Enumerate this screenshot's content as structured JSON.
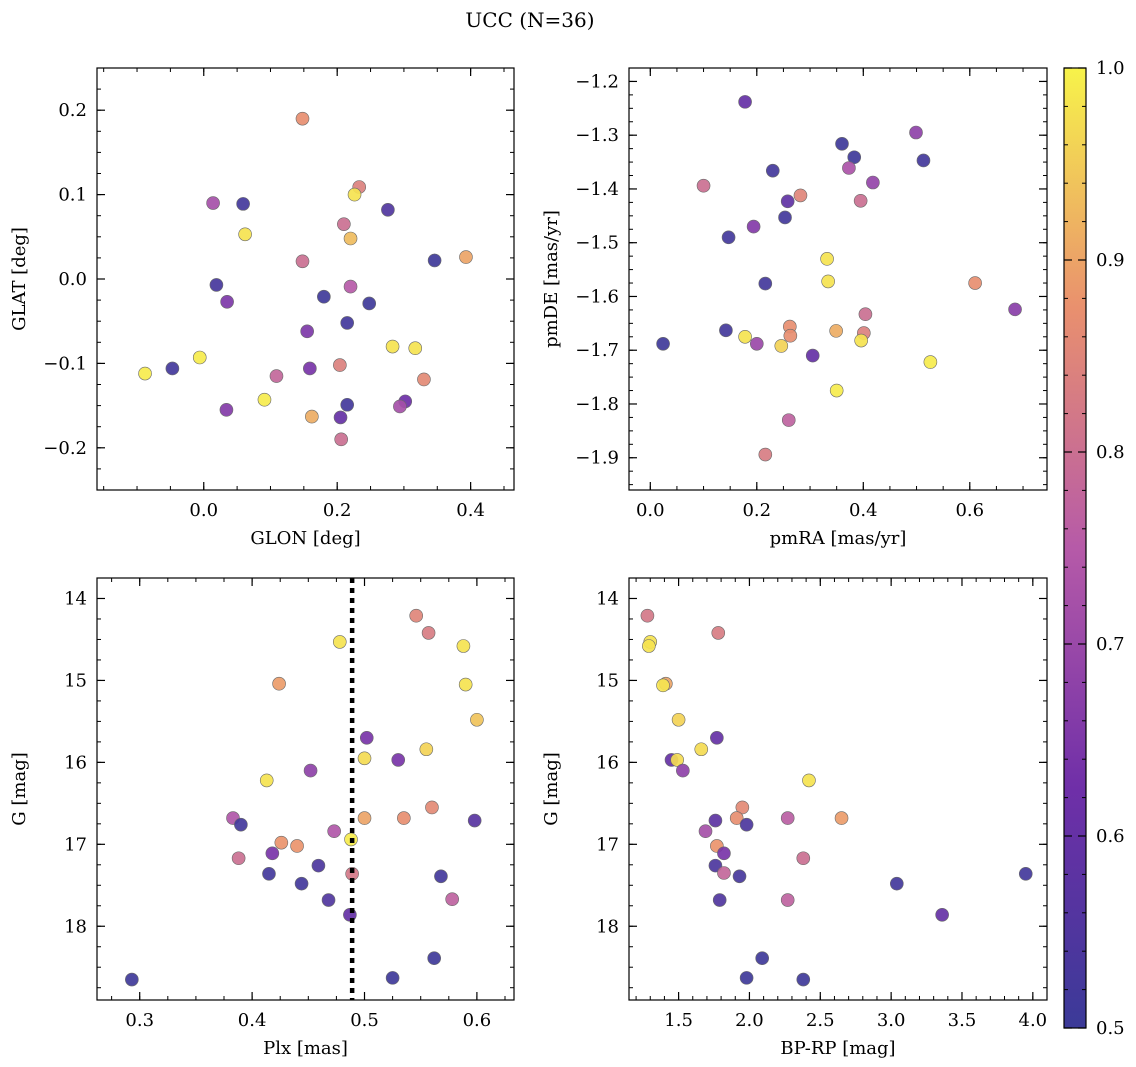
{
  "title": "UCC (N=36)",
  "colorbar": {
    "min": 0.5,
    "max": 1.0,
    "ticks": [
      0.5,
      0.6,
      0.7,
      0.8,
      0.9,
      1.0
    ],
    "tick_labels": [
      "0.5",
      "0.6",
      "0.7",
      "0.8",
      "0.9",
      "1.0"
    ],
    "colormap": "plasma"
  },
  "chart_data": [
    {
      "type": "scatter",
      "id": "glon-glat",
      "xlabel": "GLON [deg]",
      "ylabel": "GLAT [deg]",
      "xlim": [
        -0.16,
        0.465
      ],
      "ylim": [
        -0.25,
        0.25
      ],
      "xticks": [
        0.0,
        0.2,
        0.4
      ],
      "xtick_labels": [
        "0.0",
        "0.2",
        "0.4"
      ],
      "yticks": [
        -0.2,
        -0.1,
        0.0,
        0.1,
        0.2
      ],
      "ytick_labels": [
        "−0.2",
        "−0.1",
        "0.0",
        "0.1",
        "0.2"
      ],
      "x_minor_step": 0.05,
      "y_minor_step": 0.025,
      "y_invert": false,
      "points": [
        {
          "x": 0.148,
          "y": 0.19,
          "c": 0.87
        },
        {
          "x": 0.233,
          "y": 0.109,
          "c": 0.84
        },
        {
          "x": 0.226,
          "y": 0.1,
          "c": 0.98
        },
        {
          "x": 0.014,
          "y": 0.09,
          "c": 0.72
        },
        {
          "x": 0.059,
          "y": 0.089,
          "c": 0.52
        },
        {
          "x": 0.276,
          "y": 0.082,
          "c": 0.55
        },
        {
          "x": 0.21,
          "y": 0.065,
          "c": 0.8
        },
        {
          "x": 0.062,
          "y": 0.053,
          "c": 0.98
        },
        {
          "x": 0.22,
          "y": 0.048,
          "c": 0.93
        },
        {
          "x": 0.393,
          "y": 0.026,
          "c": 0.9
        },
        {
          "x": 0.346,
          "y": 0.022,
          "c": 0.51
        },
        {
          "x": 0.148,
          "y": 0.021,
          "c": 0.8
        },
        {
          "x": 0.019,
          "y": -0.007,
          "c": 0.53
        },
        {
          "x": 0.22,
          "y": -0.009,
          "c": 0.75
        },
        {
          "x": 0.035,
          "y": -0.027,
          "c": 0.65
        },
        {
          "x": 0.18,
          "y": -0.021,
          "c": 0.51
        },
        {
          "x": 0.248,
          "y": -0.029,
          "c": 0.51
        },
        {
          "x": 0.215,
          "y": -0.052,
          "c": 0.52
        },
        {
          "x": 0.155,
          "y": -0.062,
          "c": 0.65
        },
        {
          "x": 0.283,
          "y": -0.08,
          "c": 0.98
        },
        {
          "x": 0.317,
          "y": -0.082,
          "c": 0.98
        },
        {
          "x": -0.006,
          "y": -0.093,
          "c": 0.99
        },
        {
          "x": 0.204,
          "y": -0.102,
          "c": 0.84
        },
        {
          "x": 0.159,
          "y": -0.106,
          "c": 0.64
        },
        {
          "x": -0.047,
          "y": -0.106,
          "c": 0.52
        },
        {
          "x": -0.088,
          "y": -0.112,
          "c": 0.99
        },
        {
          "x": 0.109,
          "y": -0.115,
          "c": 0.78
        },
        {
          "x": 0.33,
          "y": -0.119,
          "c": 0.86
        },
        {
          "x": 0.091,
          "y": -0.143,
          "c": 0.99
        },
        {
          "x": 0.302,
          "y": -0.145,
          "c": 0.62
        },
        {
          "x": 0.215,
          "y": -0.149,
          "c": 0.52
        },
        {
          "x": 0.294,
          "y": -0.151,
          "c": 0.72
        },
        {
          "x": 0.034,
          "y": -0.155,
          "c": 0.66
        },
        {
          "x": 0.162,
          "y": -0.163,
          "c": 0.91
        },
        {
          "x": 0.205,
          "y": -0.164,
          "c": 0.6
        },
        {
          "x": 0.206,
          "y": -0.19,
          "c": 0.8
        }
      ]
    },
    {
      "type": "scatter",
      "id": "pmra-pmde",
      "xlabel": "pmRA [mas/yr]",
      "ylabel": "pmDE [mas/yr]",
      "xlim": [
        -0.04,
        0.745
      ],
      "ylim": [
        -1.96,
        -1.175
      ],
      "xticks": [
        0.0,
        0.2,
        0.4,
        0.6
      ],
      "xtick_labels": [
        "0.0",
        "0.2",
        "0.4",
        "0.6"
      ],
      "yticks": [
        -1.9,
        -1.8,
        -1.7,
        -1.6,
        -1.5,
        -1.4,
        -1.3,
        -1.2
      ],
      "ytick_labels": [
        "−1.9",
        "−1.8",
        "−1.7",
        "−1.6",
        "−1.5",
        "−1.4",
        "−1.3",
        "−1.2"
      ],
      "x_minor_step": 0.05,
      "y_minor_step": 0.025,
      "y_invert": false,
      "points": [
        {
          "x": 0.178,
          "y": -1.238,
          "c": 0.6
        },
        {
          "x": 0.499,
          "y": -1.295,
          "c": 0.68
        },
        {
          "x": 0.36,
          "y": -1.316,
          "c": 0.51
        },
        {
          "x": 0.383,
          "y": -1.341,
          "c": 0.51
        },
        {
          "x": 0.513,
          "y": -1.347,
          "c": 0.52
        },
        {
          "x": 0.373,
          "y": -1.361,
          "c": 0.73
        },
        {
          "x": 0.23,
          "y": -1.366,
          "c": 0.52
        },
        {
          "x": 0.418,
          "y": -1.388,
          "c": 0.69
        },
        {
          "x": 0.1,
          "y": -1.394,
          "c": 0.8
        },
        {
          "x": 0.282,
          "y": -1.412,
          "c": 0.85
        },
        {
          "x": 0.395,
          "y": -1.422,
          "c": 0.8
        },
        {
          "x": 0.258,
          "y": -1.423,
          "c": 0.59
        },
        {
          "x": 0.253,
          "y": -1.453,
          "c": 0.52
        },
        {
          "x": 0.194,
          "y": -1.47,
          "c": 0.66
        },
        {
          "x": 0.147,
          "y": -1.49,
          "c": 0.52
        },
        {
          "x": 0.332,
          "y": -1.53,
          "c": 0.98
        },
        {
          "x": 0.334,
          "y": -1.572,
          "c": 0.98
        },
        {
          "x": 0.216,
          "y": -1.576,
          "c": 0.52
        },
        {
          "x": 0.61,
          "y": -1.575,
          "c": 0.87
        },
        {
          "x": 0.685,
          "y": -1.624,
          "c": 0.67
        },
        {
          "x": 0.404,
          "y": -1.633,
          "c": 0.8
        },
        {
          "x": 0.262,
          "y": -1.656,
          "c": 0.87
        },
        {
          "x": 0.142,
          "y": -1.663,
          "c": 0.52
        },
        {
          "x": 0.349,
          "y": -1.664,
          "c": 0.91
        },
        {
          "x": 0.401,
          "y": -1.668,
          "c": 0.84
        },
        {
          "x": 0.263,
          "y": -1.673,
          "c": 0.87
        },
        {
          "x": 0.178,
          "y": -1.675,
          "c": 0.98
        },
        {
          "x": 0.396,
          "y": -1.682,
          "c": 0.98
        },
        {
          "x": 0.024,
          "y": -1.688,
          "c": 0.51
        },
        {
          "x": 0.2,
          "y": -1.688,
          "c": 0.7
        },
        {
          "x": 0.246,
          "y": -1.692,
          "c": 0.96
        },
        {
          "x": 0.305,
          "y": -1.71,
          "c": 0.6
        },
        {
          "x": 0.526,
          "y": -1.722,
          "c": 0.99
        },
        {
          "x": 0.35,
          "y": -1.775,
          "c": 0.99
        },
        {
          "x": 0.26,
          "y": -1.83,
          "c": 0.77
        },
        {
          "x": 0.216,
          "y": -1.894,
          "c": 0.83
        }
      ]
    },
    {
      "type": "scatter",
      "id": "plx-g",
      "xlabel": "Plx [mas]",
      "ylabel": "G [mag]",
      "xlim": [
        0.262,
        0.633
      ],
      "ylim": [
        18.9,
        13.75
      ],
      "xticks": [
        0.3,
        0.4,
        0.5,
        0.6
      ],
      "xtick_labels": [
        "0.3",
        "0.4",
        "0.5",
        "0.6"
      ],
      "yticks": [
        14,
        15,
        16,
        17,
        18
      ],
      "ytick_labels": [
        "14",
        "15",
        "16",
        "17",
        "18"
      ],
      "x_minor_step": 0.025,
      "y_minor_step": 0.25,
      "y_invert": true,
      "vline": 0.489,
      "points": [
        {
          "x": 0.546,
          "y": 14.21,
          "c": 0.85
        },
        {
          "x": 0.557,
          "y": 14.42,
          "c": 0.83
        },
        {
          "x": 0.478,
          "y": 14.53,
          "c": 0.98
        },
        {
          "x": 0.588,
          "y": 14.58,
          "c": 0.98
        },
        {
          "x": 0.424,
          "y": 15.04,
          "c": 0.89
        },
        {
          "x": 0.59,
          "y": 15.05,
          "c": 0.98
        },
        {
          "x": 0.6,
          "y": 15.48,
          "c": 0.94
        },
        {
          "x": 0.502,
          "y": 15.7,
          "c": 0.64
        },
        {
          "x": 0.555,
          "y": 15.84,
          "c": 0.96
        },
        {
          "x": 0.5,
          "y": 15.95,
          "c": 0.97
        },
        {
          "x": 0.53,
          "y": 15.97,
          "c": 0.64
        },
        {
          "x": 0.452,
          "y": 16.1,
          "c": 0.68
        },
        {
          "x": 0.413,
          "y": 16.22,
          "c": 0.98
        },
        {
          "x": 0.56,
          "y": 16.55,
          "c": 0.86
        },
        {
          "x": 0.383,
          "y": 16.68,
          "c": 0.74
        },
        {
          "x": 0.5,
          "y": 16.68,
          "c": 0.9
        },
        {
          "x": 0.535,
          "y": 16.68,
          "c": 0.87
        },
        {
          "x": 0.598,
          "y": 16.71,
          "c": 0.57
        },
        {
          "x": 0.39,
          "y": 16.76,
          "c": 0.52
        },
        {
          "x": 0.473,
          "y": 16.84,
          "c": 0.74
        },
        {
          "x": 0.488,
          "y": 16.94,
          "c": 0.99
        },
        {
          "x": 0.426,
          "y": 16.98,
          "c": 0.88
        },
        {
          "x": 0.44,
          "y": 17.02,
          "c": 0.88
        },
        {
          "x": 0.418,
          "y": 17.11,
          "c": 0.64
        },
        {
          "x": 0.388,
          "y": 17.17,
          "c": 0.8
        },
        {
          "x": 0.459,
          "y": 17.26,
          "c": 0.54
        },
        {
          "x": 0.415,
          "y": 17.36,
          "c": 0.52
        },
        {
          "x": 0.489,
          "y": 17.36,
          "c": 0.82
        },
        {
          "x": 0.568,
          "y": 17.39,
          "c": 0.52
        },
        {
          "x": 0.444,
          "y": 17.48,
          "c": 0.52
        },
        {
          "x": 0.578,
          "y": 17.67,
          "c": 0.77
        },
        {
          "x": 0.468,
          "y": 17.68,
          "c": 0.55
        },
        {
          "x": 0.487,
          "y": 17.86,
          "c": 0.6
        },
        {
          "x": 0.562,
          "y": 18.39,
          "c": 0.51
        },
        {
          "x": 0.293,
          "y": 18.65,
          "c": 0.51
        },
        {
          "x": 0.525,
          "y": 18.63,
          "c": 0.51
        }
      ]
    },
    {
      "type": "scatter",
      "id": "bprp-g",
      "xlabel": "BP-RP [mag]",
      "ylabel": "G [mag]",
      "xlim": [
        1.15,
        4.1
      ],
      "ylim": [
        18.9,
        13.75
      ],
      "xticks": [
        1.5,
        2.0,
        2.5,
        3.0,
        3.5,
        4.0
      ],
      "xtick_labels": [
        "1.5",
        "2.0",
        "2.5",
        "3.0",
        "3.5",
        "4.0"
      ],
      "yticks": [
        14,
        15,
        16,
        17,
        18
      ],
      "ytick_labels": [
        "14",
        "15",
        "16",
        "17",
        "18"
      ],
      "x_minor_step": 0.1,
      "y_minor_step": 0.25,
      "y_invert": true,
      "points": [
        {
          "x": 1.28,
          "y": 14.21,
          "c": 0.82
        },
        {
          "x": 1.3,
          "y": 14.53,
          "c": 0.98
        },
        {
          "x": 1.29,
          "y": 14.58,
          "c": 0.98
        },
        {
          "x": 1.78,
          "y": 14.42,
          "c": 0.83
        },
        {
          "x": 1.41,
          "y": 15.04,
          "c": 0.9
        },
        {
          "x": 1.39,
          "y": 15.06,
          "c": 0.98
        },
        {
          "x": 1.5,
          "y": 15.48,
          "c": 0.96
        },
        {
          "x": 1.77,
          "y": 15.7,
          "c": 0.6
        },
        {
          "x": 1.66,
          "y": 15.84,
          "c": 0.97
        },
        {
          "x": 1.45,
          "y": 15.97,
          "c": 0.6
        },
        {
          "x": 1.49,
          "y": 15.97,
          "c": 0.97
        },
        {
          "x": 1.53,
          "y": 16.1,
          "c": 0.68
        },
        {
          "x": 2.42,
          "y": 16.22,
          "c": 0.98
        },
        {
          "x": 1.95,
          "y": 16.55,
          "c": 0.86
        },
        {
          "x": 1.91,
          "y": 16.68,
          "c": 0.87
        },
        {
          "x": 2.27,
          "y": 16.68,
          "c": 0.76
        },
        {
          "x": 2.65,
          "y": 16.68,
          "c": 0.89
        },
        {
          "x": 1.76,
          "y": 16.71,
          "c": 0.58
        },
        {
          "x": 1.98,
          "y": 16.76,
          "c": 0.54
        },
        {
          "x": 1.69,
          "y": 16.84,
          "c": 0.72
        },
        {
          "x": 1.77,
          "y": 17.02,
          "c": 0.88
        },
        {
          "x": 1.82,
          "y": 17.11,
          "c": 0.64
        },
        {
          "x": 2.38,
          "y": 17.17,
          "c": 0.8
        },
        {
          "x": 1.76,
          "y": 17.26,
          "c": 0.54
        },
        {
          "x": 1.82,
          "y": 17.35,
          "c": 0.78
        },
        {
          "x": 1.93,
          "y": 17.39,
          "c": 0.53
        },
        {
          "x": 3.95,
          "y": 17.36,
          "c": 0.52
        },
        {
          "x": 3.04,
          "y": 17.48,
          "c": 0.52
        },
        {
          "x": 1.79,
          "y": 17.68,
          "c": 0.55
        },
        {
          "x": 2.27,
          "y": 17.68,
          "c": 0.77
        },
        {
          "x": 3.36,
          "y": 17.86,
          "c": 0.6
        },
        {
          "x": 2.09,
          "y": 18.39,
          "c": 0.51
        },
        {
          "x": 1.98,
          "y": 18.63,
          "c": 0.51
        },
        {
          "x": 2.38,
          "y": 18.65,
          "c": 0.51
        }
      ]
    }
  ]
}
